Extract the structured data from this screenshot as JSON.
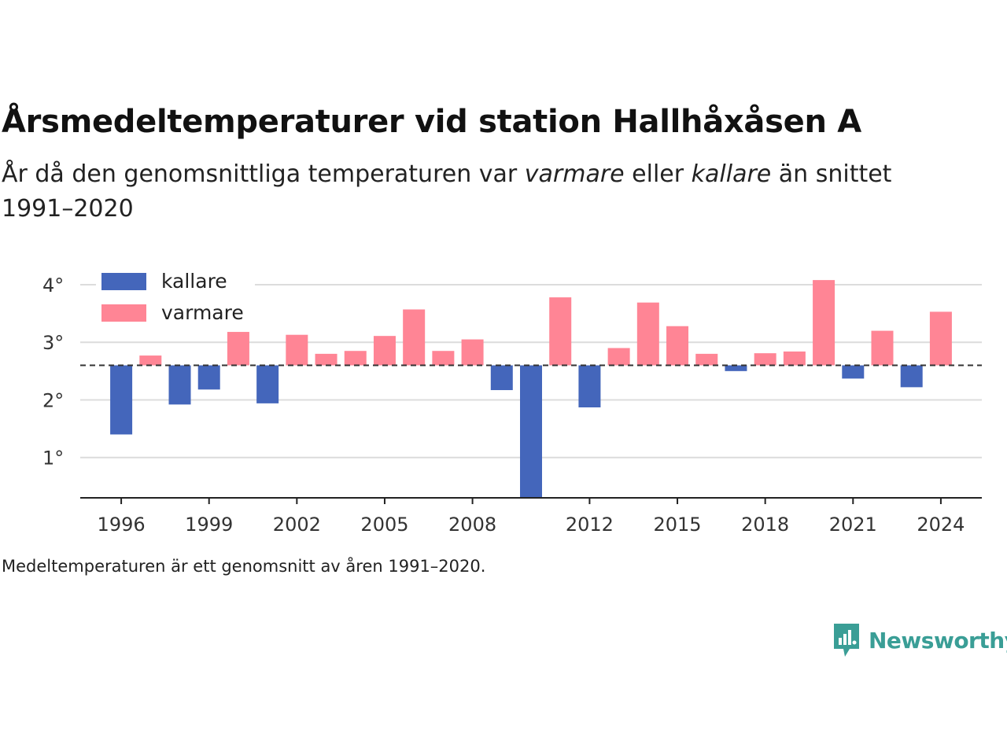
{
  "title": "Årsmedeltemperaturer vid station Hallhåxåsen A",
  "subtitle": {
    "part1": "År då den genomsnittliga temperaturen var ",
    "warmer_word": "varmare",
    "part2": " eller ",
    "colder_word": "kallare",
    "part3": " än snittet 1991–2020"
  },
  "footnote": "Medeltemperaturen är ett genomsnitt av åren 1991–2020.",
  "brand": {
    "name": "Newsworthy",
    "color": "#3a9e96"
  },
  "chart_data": {
    "type": "bar",
    "baseline": 2.6,
    "ylim": [
      0.3,
      4.3
    ],
    "yticks": [
      1,
      2,
      3,
      4
    ],
    "ytick_labels": [
      "1°",
      "2°",
      "3°",
      "4°"
    ],
    "xlim": [
      1994.6,
      2025.4
    ],
    "xticks": [
      1996,
      1999,
      2002,
      2005,
      2008,
      2012,
      2015,
      2018,
      2021,
      2024
    ],
    "legend": {
      "position": "top-left",
      "items": [
        {
          "label": "kallare",
          "color": "#4466bb"
        },
        {
          "label": "varmare",
          "color": "#ff8595"
        }
      ]
    },
    "colors": {
      "colder": "#4466bb",
      "warmer": "#ff8595"
    },
    "grid": true,
    "years": [
      1996,
      1997,
      1998,
      1999,
      2000,
      2001,
      2002,
      2003,
      2004,
      2005,
      2006,
      2007,
      2008,
      2009,
      2010,
      2011,
      2012,
      2013,
      2014,
      2015,
      2016,
      2017,
      2018,
      2019,
      2020,
      2021,
      2022,
      2023,
      2024
    ],
    "values": [
      1.4,
      2.77,
      1.92,
      2.18,
      3.18,
      1.94,
      3.13,
      2.8,
      2.85,
      3.11,
      3.57,
      2.85,
      3.05,
      2.17,
      0.3,
      3.78,
      1.87,
      2.9,
      3.69,
      3.28,
      2.8,
      2.5,
      2.81,
      2.84,
      4.08,
      2.37,
      3.2,
      2.22,
      3.53
    ]
  }
}
